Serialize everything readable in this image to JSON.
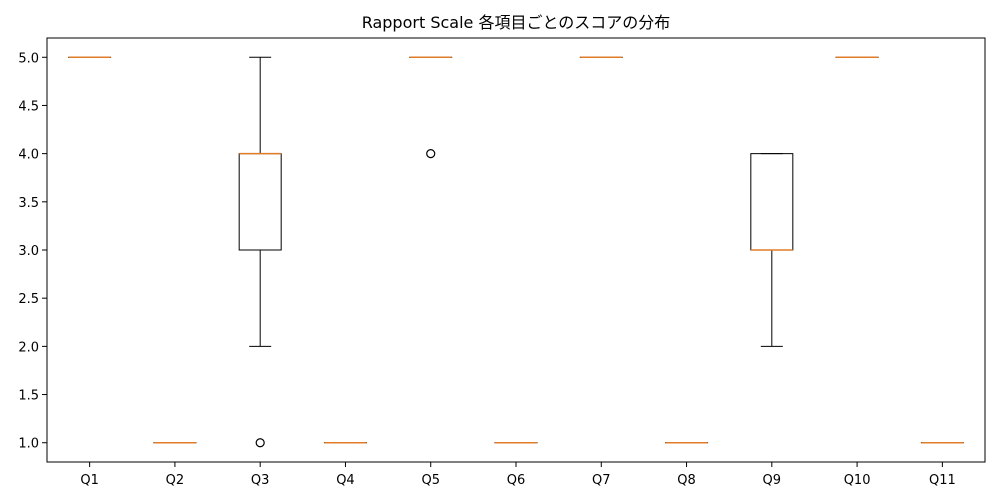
{
  "chart_data": {
    "type": "box",
    "title": "Rapport Scale 各項目ごとのスコアの分布",
    "xlabel": "",
    "ylabel": "",
    "categories": [
      "Q1",
      "Q2",
      "Q3",
      "Q4",
      "Q5",
      "Q6",
      "Q7",
      "Q8",
      "Q9",
      "Q10",
      "Q11"
    ],
    "ylim": [
      0.8,
      5.2
    ],
    "yticks": [
      1.0,
      1.5,
      2.0,
      2.5,
      3.0,
      3.5,
      4.0,
      4.5,
      5.0
    ],
    "ytick_labels": [
      "1.0",
      "1.5",
      "2.0",
      "2.5",
      "3.0",
      "3.5",
      "4.0",
      "4.5",
      "5.0"
    ],
    "grid": false,
    "boxes": [
      {
        "q1": 5,
        "median": 5,
        "q3": 5,
        "whisker_low": 5,
        "whisker_high": 5,
        "outliers": []
      },
      {
        "q1": 1,
        "median": 1,
        "q3": 1,
        "whisker_low": 1,
        "whisker_high": 1,
        "outliers": []
      },
      {
        "q1": 3,
        "median": 4,
        "q3": 4,
        "whisker_low": 2,
        "whisker_high": 5,
        "outliers": [
          1
        ]
      },
      {
        "q1": 1,
        "median": 1,
        "q3": 1,
        "whisker_low": 1,
        "whisker_high": 1,
        "outliers": []
      },
      {
        "q1": 5,
        "median": 5,
        "q3": 5,
        "whisker_low": 5,
        "whisker_high": 5,
        "outliers": [
          4
        ]
      },
      {
        "q1": 1,
        "median": 1,
        "q3": 1,
        "whisker_low": 1,
        "whisker_high": 1,
        "outliers": []
      },
      {
        "q1": 5,
        "median": 5,
        "q3": 5,
        "whisker_low": 5,
        "whisker_high": 5,
        "outliers": []
      },
      {
        "q1": 1,
        "median": 1,
        "q3": 1,
        "whisker_low": 1,
        "whisker_high": 1,
        "outliers": []
      },
      {
        "q1": 3,
        "median": 3,
        "q3": 4,
        "whisker_low": 2,
        "whisker_high": 4,
        "outliers": []
      },
      {
        "q1": 5,
        "median": 5,
        "q3": 5,
        "whisker_low": 5,
        "whisker_high": 5,
        "outliers": []
      },
      {
        "q1": 1,
        "median": 1,
        "q3": 1,
        "whisker_low": 1,
        "whisker_high": 1,
        "outliers": []
      }
    ],
    "colors": {
      "box": "#000000",
      "median": "#e07b28",
      "outlier": "#000000"
    }
  }
}
